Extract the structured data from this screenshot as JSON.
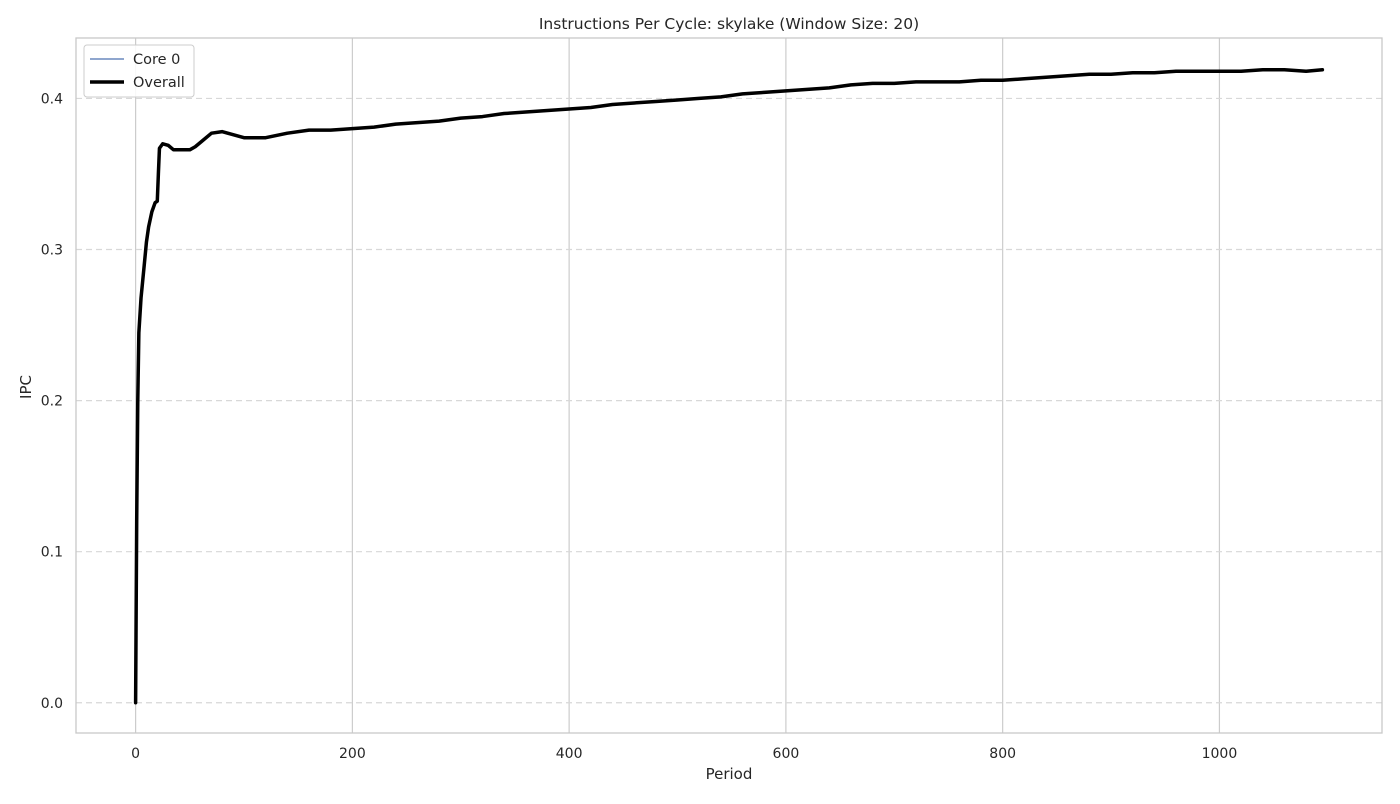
{
  "chart_data": {
    "type": "line",
    "title": "Instructions Per Cycle: skylake (Window Size: 20)",
    "xlabel": "Period",
    "ylabel": "IPC",
    "xlim": [
      -55,
      1150
    ],
    "ylim": [
      -0.02,
      0.44
    ],
    "xticks": [
      0,
      200,
      400,
      600,
      800,
      1000
    ],
    "yticks": [
      0.0,
      0.1,
      0.2,
      0.3,
      0.4
    ],
    "xtick_labels": [
      "0",
      "200",
      "400",
      "600",
      "800",
      "1000"
    ],
    "ytick_labels": [
      "0.0",
      "0.1",
      "0.2",
      "0.3",
      "0.4"
    ],
    "grid": true,
    "legend_position": "top-left",
    "series": [
      {
        "name": "Core 0",
        "color": "#4c72b0",
        "style": "thin",
        "x": [
          0,
          1,
          2,
          3,
          5,
          8,
          10,
          12,
          15,
          18,
          20,
          21,
          22,
          25,
          30,
          35,
          40,
          50,
          55,
          60,
          70,
          80,
          90,
          100,
          110,
          120,
          140,
          160,
          180,
          200,
          220,
          240,
          260,
          280,
          300,
          320,
          340,
          360,
          380,
          400,
          420,
          440,
          460,
          480,
          500,
          520,
          540,
          560,
          580,
          600,
          620,
          640,
          660,
          680,
          700,
          720,
          740,
          760,
          780,
          800,
          820,
          840,
          860,
          880,
          900,
          920,
          940,
          960,
          980,
          1000,
          1020,
          1040,
          1060,
          1080,
          1095
        ],
        "y": [
          0.0,
          0.12,
          0.2,
          0.245,
          0.268,
          0.29,
          0.305,
          0.315,
          0.325,
          0.331,
          0.332,
          0.35,
          0.367,
          0.37,
          0.369,
          0.366,
          0.366,
          0.366,
          0.368,
          0.371,
          0.377,
          0.378,
          0.376,
          0.374,
          0.374,
          0.374,
          0.377,
          0.379,
          0.379,
          0.38,
          0.381,
          0.383,
          0.384,
          0.385,
          0.387,
          0.388,
          0.39,
          0.391,
          0.392,
          0.393,
          0.394,
          0.396,
          0.397,
          0.398,
          0.399,
          0.4,
          0.401,
          0.403,
          0.404,
          0.405,
          0.406,
          0.407,
          0.409,
          0.41,
          0.41,
          0.411,
          0.411,
          0.411,
          0.412,
          0.412,
          0.413,
          0.414,
          0.415,
          0.416,
          0.416,
          0.417,
          0.417,
          0.418,
          0.418,
          0.418,
          0.418,
          0.419,
          0.419,
          0.418,
          0.419
        ]
      },
      {
        "name": "Overall",
        "color": "#000000",
        "style": "thick",
        "x": [
          0,
          1,
          2,
          3,
          5,
          8,
          10,
          12,
          15,
          18,
          20,
          21,
          22,
          25,
          30,
          35,
          40,
          50,
          55,
          60,
          70,
          80,
          90,
          100,
          110,
          120,
          140,
          160,
          180,
          200,
          220,
          240,
          260,
          280,
          300,
          320,
          340,
          360,
          380,
          400,
          420,
          440,
          460,
          480,
          500,
          520,
          540,
          560,
          580,
          600,
          620,
          640,
          660,
          680,
          700,
          720,
          740,
          760,
          780,
          800,
          820,
          840,
          860,
          880,
          900,
          920,
          940,
          960,
          980,
          1000,
          1020,
          1040,
          1060,
          1080,
          1095
        ],
        "y": [
          0.0,
          0.12,
          0.2,
          0.245,
          0.268,
          0.29,
          0.305,
          0.315,
          0.325,
          0.331,
          0.332,
          0.35,
          0.367,
          0.37,
          0.369,
          0.366,
          0.366,
          0.366,
          0.368,
          0.371,
          0.377,
          0.378,
          0.376,
          0.374,
          0.374,
          0.374,
          0.377,
          0.379,
          0.379,
          0.38,
          0.381,
          0.383,
          0.384,
          0.385,
          0.387,
          0.388,
          0.39,
          0.391,
          0.392,
          0.393,
          0.394,
          0.396,
          0.397,
          0.398,
          0.399,
          0.4,
          0.401,
          0.403,
          0.404,
          0.405,
          0.406,
          0.407,
          0.409,
          0.41,
          0.41,
          0.411,
          0.411,
          0.411,
          0.412,
          0.412,
          0.413,
          0.414,
          0.415,
          0.416,
          0.416,
          0.417,
          0.417,
          0.418,
          0.418,
          0.418,
          0.418,
          0.419,
          0.419,
          0.418,
          0.419
        ]
      }
    ],
    "colors": {
      "background": "#ffffff",
      "grid_vertical": "#cccccc",
      "grid_horizontal": "#d8d8d8",
      "spine": "#c8c8c8",
      "text": "#262626"
    }
  }
}
